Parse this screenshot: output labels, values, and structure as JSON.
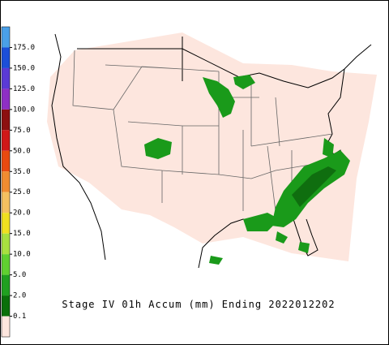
{
  "legend": {
    "colors": [
      "#4aa0e8",
      "#1c4fd8",
      "#5a3ad6",
      "#8e2fc4",
      "#8c1010",
      "#d01818",
      "#e84a10",
      "#f08c30",
      "#f4c060",
      "#f0e020",
      "#a8e040",
      "#60d030",
      "#20a020",
      "#0a700a",
      "#fde6de"
    ],
    "labels": [
      "175.0",
      "150.0",
      "125.0",
      "100.0",
      "75.0",
      "50.0",
      "35.0",
      "25.0",
      "20.0",
      "15.0",
      "10.0",
      "5.0",
      "2.0",
      "0.1"
    ]
  },
  "caption": "Stage IV 01h Accum (mm) Ending 2022012202"
}
